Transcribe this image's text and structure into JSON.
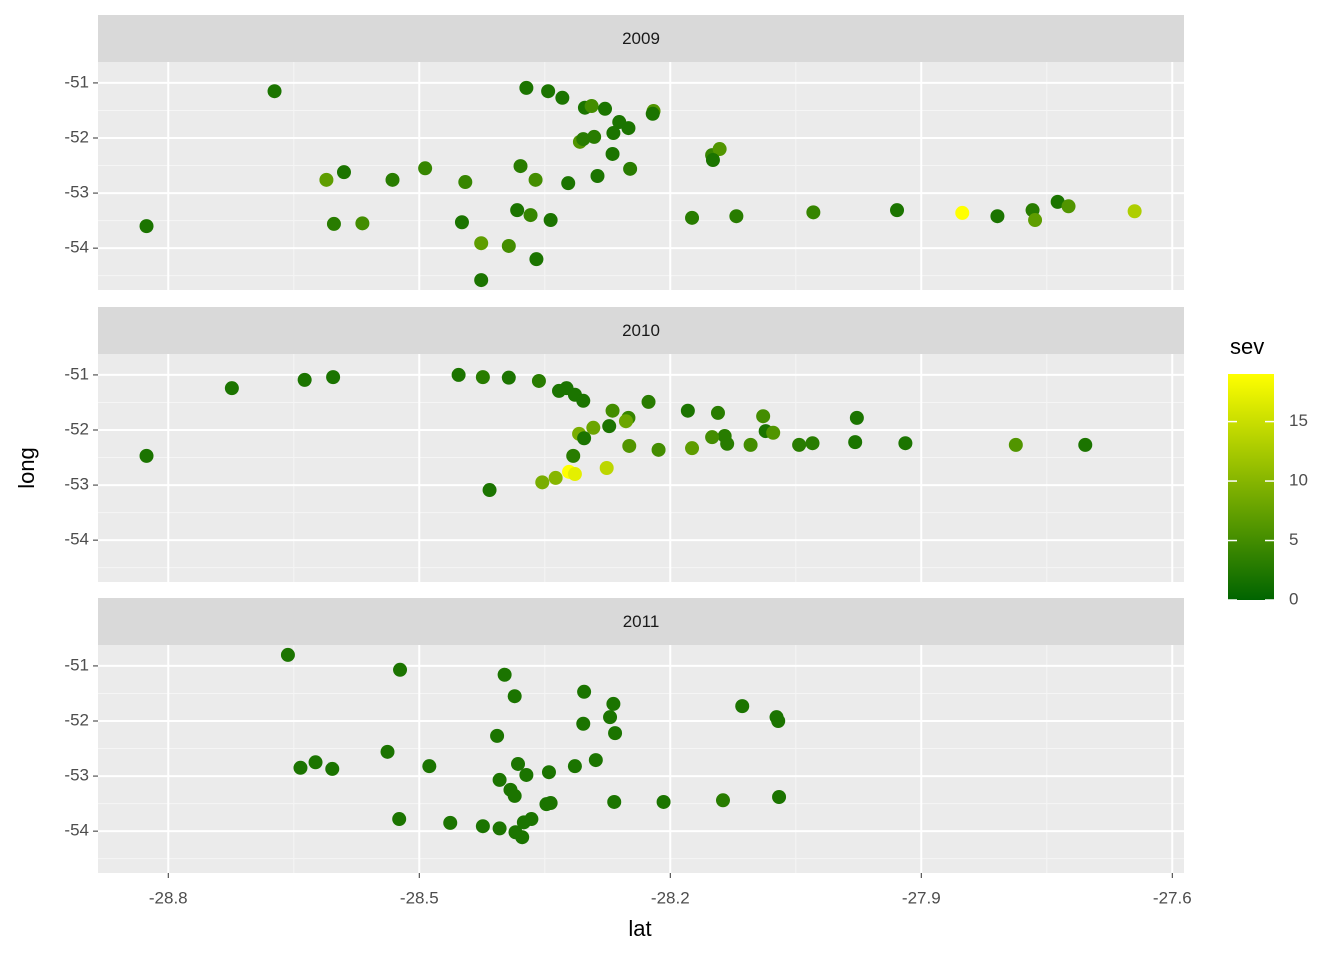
{
  "chart_data": {
    "type": "facet_scatter",
    "x_label": "lat",
    "y_label": "long",
    "xlim": [
      -28.884,
      -27.586
    ],
    "xticks": [
      -28.8,
      -28.5,
      -28.2,
      -27.9,
      -27.6
    ],
    "ylim": [
      -54.76,
      -50.62
    ],
    "yticks": [
      -51,
      -52,
      -53,
      -54
    ],
    "grid": true,
    "colorbar": {
      "title": "sev",
      "lim": [
        0,
        19
      ],
      "ticks": [
        0,
        5,
        10,
        15
      ],
      "low": "#006400",
      "high": "#ffff00"
    },
    "facets": [
      {
        "title": "2009",
        "x": [
          -28.826,
          -28.673,
          -28.611,
          -28.59,
          -28.602,
          -28.568,
          -28.532,
          -28.493,
          -28.445,
          -28.449,
          -28.426,
          -28.426,
          -28.393,
          -28.36,
          -28.383,
          -28.367,
          -28.343,
          -28.379,
          -28.361,
          -28.322,
          -28.372,
          -28.346,
          -28.329,
          -28.302,
          -28.294,
          -28.278,
          -28.261,
          -28.25,
          -28.268,
          -28.291,
          -28.308,
          -28.304,
          -28.269,
          -28.287,
          -28.248,
          -28.22,
          -28.221,
          -28.15,
          -28.141,
          -28.149,
          -28.174,
          -28.121,
          -28.029,
          -27.929,
          -27.851,
          -27.809,
          -27.767,
          -27.764,
          -27.737,
          -27.724,
          -27.645
        ],
        "values": [
          -53.6,
          -51.15,
          -52.76,
          -52.62,
          -53.56,
          -53.55,
          -52.76,
          -52.55,
          -52.8,
          -53.53,
          -53.91,
          -54.58,
          -53.96,
          -54.2,
          -53.31,
          -53.4,
          -53.49,
          -52.51,
          -52.76,
          -52.82,
          -51.09,
          -51.15,
          -51.27,
          -51.45,
          -51.42,
          -51.47,
          -51.71,
          -51.82,
          -51.91,
          -51.98,
          -52.07,
          -52.02,
          -52.29,
          -52.69,
          -52.56,
          -51.51,
          -51.56,
          -52.31,
          -52.2,
          -52.4,
          -53.45,
          -53.42,
          -53.35,
          -53.31,
          -53.36,
          -53.42,
          -53.31,
          -53.49,
          -53.16,
          -53.24,
          -53.33
        ],
        "sev": [
          2,
          2,
          7,
          2,
          3,
          5,
          3,
          4,
          4,
          2,
          7,
          2,
          5,
          2,
          2,
          4,
          2,
          3,
          5,
          2,
          2,
          2,
          2,
          2,
          5,
          2,
          2,
          2,
          2,
          3,
          6,
          3,
          2,
          2,
          3,
          6,
          2,
          4,
          6,
          2,
          3,
          3,
          4,
          2,
          19,
          2,
          3,
          7,
          2,
          6,
          13
        ]
      },
      {
        "title": "2010",
        "x": [
          -28.826,
          -28.724,
          -28.637,
          -28.603,
          -28.453,
          -28.424,
          -28.393,
          -28.357,
          -28.324,
          -28.333,
          -28.314,
          -28.304,
          -28.226,
          -28.269,
          -28.25,
          -28.253,
          -28.273,
          -28.292,
          -28.309,
          -28.303,
          -28.179,
          -28.143,
          -28.089,
          -27.977,
          -28.135,
          -28.15,
          -28.132,
          -28.104,
          -28.086,
          -28.077,
          -28.249,
          -28.214,
          -28.174,
          -28.046,
          -28.03,
          -27.979,
          -27.919,
          -27.787,
          -27.704,
          -28.316,
          -28.321,
          -28.314,
          -28.276,
          -28.337,
          -28.353,
          -28.416
        ],
        "values": [
          -52.47,
          -51.24,
          -51.09,
          -51.04,
          -51.0,
          -51.04,
          -51.05,
          -51.11,
          -51.24,
          -51.29,
          -51.36,
          -51.47,
          -51.49,
          -51.65,
          -51.78,
          -51.84,
          -51.93,
          -51.96,
          -52.07,
          -52.15,
          -51.65,
          -51.69,
          -51.75,
          -51.78,
          -52.11,
          -52.13,
          -52.25,
          -52.27,
          -52.02,
          -52.05,
          -52.29,
          -52.36,
          -52.33,
          -52.27,
          -52.24,
          -52.22,
          -52.24,
          -52.27,
          -52.27,
          -52.47,
          -52.76,
          -52.8,
          -52.69,
          -52.87,
          -52.95,
          -53.09
        ],
        "sev": [
          2,
          2,
          2,
          2,
          2,
          3,
          2,
          3,
          2,
          2,
          2,
          2,
          3,
          5,
          4,
          8,
          2,
          8,
          9,
          2,
          2,
          3,
          5,
          2,
          3,
          5,
          3,
          5,
          2,
          6,
          6,
          5,
          7,
          3,
          3,
          2,
          2,
          6,
          2,
          3,
          19,
          17,
          14,
          10,
          9,
          2
        ]
      },
      {
        "title": "2011",
        "x": [
          -28.657,
          -28.642,
          -28.624,
          -28.604,
          -28.538,
          -28.523,
          -28.488,
          -28.524,
          -28.463,
          -28.424,
          -28.404,
          -28.407,
          -28.398,
          -28.386,
          -28.404,
          -28.391,
          -28.386,
          -28.382,
          -28.372,
          -28.385,
          -28.377,
          -28.375,
          -28.366,
          -28.348,
          -28.343,
          -28.345,
          -28.314,
          -28.303,
          -28.304,
          -28.289,
          -28.268,
          -28.272,
          -28.266,
          -28.267,
          -28.208,
          -28.137,
          -28.114,
          -28.073,
          -28.071,
          -28.07
        ],
        "values": [
          -50.8,
          -52.85,
          -52.75,
          -52.87,
          -52.56,
          -51.07,
          -52.82,
          -53.78,
          -53.85,
          -53.91,
          -53.95,
          -52.27,
          -51.16,
          -51.55,
          -53.07,
          -53.25,
          -53.36,
          -52.78,
          -52.98,
          -54.02,
          -54.11,
          -53.84,
          -53.78,
          -53.51,
          -53.49,
          -52.93,
          -52.82,
          -51.47,
          -52.05,
          -52.71,
          -51.69,
          -51.93,
          -52.22,
          -53.47,
          -53.47,
          -53.44,
          -51.73,
          -51.93,
          -52.0,
          -53.38
        ],
        "sev": [
          2,
          2,
          2,
          2,
          2,
          2,
          2,
          2,
          2,
          2,
          2,
          2,
          2,
          2,
          2,
          2,
          2,
          2,
          2,
          2,
          2,
          2,
          2,
          2,
          2,
          2,
          2,
          2,
          2,
          2,
          2,
          2,
          2,
          2,
          2,
          3,
          2,
          2,
          2,
          2
        ]
      }
    ]
  }
}
